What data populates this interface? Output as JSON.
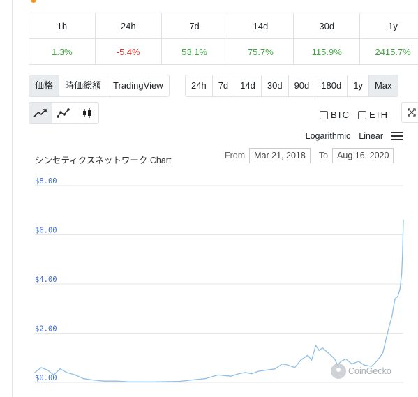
{
  "changes": {
    "headers": [
      "1h",
      "24h",
      "7d",
      "14d",
      "30d",
      "1y"
    ],
    "values": [
      "1.3%",
      "-5.4%",
      "53.1%",
      "75.7%",
      "115.9%",
      "2415.7%"
    ],
    "positive_color": "#3fa33f",
    "negative_color": "#e0332e"
  },
  "view_tabs": [
    "価格",
    "時価総額",
    "TradingView"
  ],
  "active_view": "価格",
  "ranges": [
    "24h",
    "7d",
    "14d",
    "30d",
    "90d",
    "180d",
    "1y",
    "Max"
  ],
  "active_range": "Max",
  "chart_types": [
    "line-chart-icon",
    "scatter-line-icon",
    "candlestick-icon"
  ],
  "compare": {
    "btc": "BTC",
    "eth": "ETH"
  },
  "scale": {
    "log": "Logarithmic",
    "linear": "Linear"
  },
  "chart_title": "シンセティクスネットワーク Chart",
  "date_range": {
    "from_label": "From",
    "from": "Mar 21, 2018",
    "to_label": "To",
    "to": "Aug 16, 2020"
  },
  "watermark": "CoinGecko",
  "chart_data": {
    "type": "line",
    "title": "シンセティクスネットワーク Chart",
    "xlabel": "",
    "ylabel": "",
    "x_range": [
      "2018-03-21",
      "2020-08-16"
    ],
    "ylim": [
      0,
      8
    ],
    "y_ticks": [
      "$0.00",
      "$2.00",
      "$4.00",
      "$6.00",
      "$8.00"
    ],
    "y_tick_values": [
      0,
      2,
      4,
      6,
      8
    ],
    "grid": true,
    "line_color": "#8ebfea",
    "axis_label_color": "#3d6bd6",
    "series": [
      {
        "x": [
          "2018-03-21",
          "2018-04-05",
          "2018-04-20",
          "2018-05-05",
          "2018-05-20",
          "2018-06-05",
          "2018-06-25",
          "2018-07-15",
          "2018-08-05",
          "2018-09-01",
          "2018-10-01",
          "2018-11-01",
          "2018-12-01",
          "2019-01-01",
          "2019-02-01",
          "2019-03-01",
          "2019-04-01",
          "2019-05-01",
          "2019-06-01",
          "2019-07-01",
          "2019-07-20",
          "2019-08-05",
          "2019-08-20",
          "2019-09-05",
          "2019-09-25",
          "2019-10-15",
          "2019-11-01",
          "2019-11-15",
          "2019-12-01",
          "2019-12-15",
          "2020-01-01",
          "2020-01-10",
          "2020-01-20",
          "2020-01-28",
          "2020-02-05",
          "2020-02-15",
          "2020-02-25",
          "2020-03-05",
          "2020-03-12",
          "2020-03-20",
          "2020-04-01",
          "2020-04-15",
          "2020-05-01",
          "2020-05-15",
          "2020-06-01",
          "2020-06-10",
          "2020-06-20",
          "2020-06-28",
          "2020-07-05",
          "2020-07-12",
          "2020-07-20",
          "2020-07-27",
          "2020-08-03",
          "2020-08-08",
          "2020-08-12",
          "2020-08-14",
          "2020-08-16"
        ],
        "values": [
          0.4,
          0.6,
          0.5,
          0.3,
          0.55,
          0.4,
          0.3,
          0.15,
          0.1,
          0.05,
          0.05,
          0.02,
          0.02,
          0.02,
          0.03,
          0.04,
          0.1,
          0.15,
          0.3,
          0.25,
          0.35,
          0.4,
          0.35,
          0.45,
          0.5,
          0.55,
          0.75,
          0.7,
          0.6,
          0.9,
          1.1,
          0.9,
          1.5,
          1.3,
          1.4,
          1.25,
          1.1,
          0.95,
          0.7,
          0.85,
          0.95,
          0.75,
          0.85,
          0.7,
          0.65,
          0.8,
          1.0,
          1.2,
          1.7,
          2.2,
          2.7,
          3.4,
          3.5,
          3.8,
          4.4,
          5.2,
          6.6
        ]
      }
    ]
  }
}
